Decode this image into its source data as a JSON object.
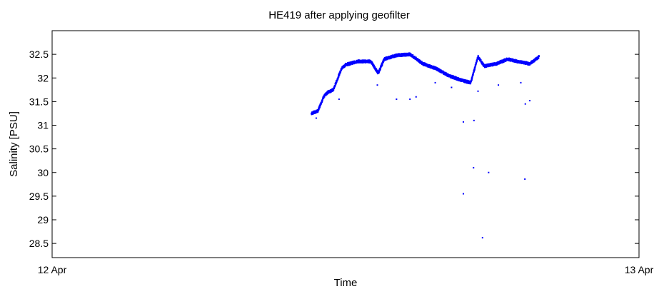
{
  "chart_data": {
    "type": "scatter",
    "title": "HE419 after applying geofilter",
    "xlabel": "Time",
    "ylabel": "Salinity [PSU]",
    "x_ticks": [
      {
        "x": "2000-04-12T00:00",
        "label": "12 Apr"
      },
      {
        "x": "2000-04-13T00:00",
        "label": "13 Apr"
      }
    ],
    "xlim": [
      "2000-04-12T00:00",
      "2000-04-13T00:00"
    ],
    "ylim": [
      28.2,
      33.0
    ],
    "y_ticks": [
      28.5,
      29,
      29.5,
      30,
      30.5,
      31,
      31.5,
      32,
      32.5
    ],
    "grid": false,
    "marker_color": "#0000ff",
    "main_track": [
      {
        "x": "2000-04-12T10:36",
        "y": 31.25
      },
      {
        "x": "2000-04-12T10:52",
        "y": 31.3
      },
      {
        "x": "2000-04-12T11:06",
        "y": 31.6
      },
      {
        "x": "2000-04-12T11:17",
        "y": 31.7
      },
      {
        "x": "2000-04-12T11:30",
        "y": 31.75
      },
      {
        "x": "2000-04-12T11:50",
        "y": 32.2
      },
      {
        "x": "2000-04-12T12:00",
        "y": 32.28
      },
      {
        "x": "2000-04-12T12:30",
        "y": 32.35
      },
      {
        "x": "2000-04-12T13:02",
        "y": 32.35
      },
      {
        "x": "2000-04-12T13:20",
        "y": 32.1
      },
      {
        "x": "2000-04-12T13:35",
        "y": 32.4
      },
      {
        "x": "2000-04-12T14:06",
        "y": 32.48
      },
      {
        "x": "2000-04-12T14:38",
        "y": 32.5
      },
      {
        "x": "2000-04-12T15:10",
        "y": 32.3
      },
      {
        "x": "2000-04-12T15:42",
        "y": 32.2
      },
      {
        "x": "2000-04-12T16:13",
        "y": 32.05
      },
      {
        "x": "2000-04-12T16:45",
        "y": 31.95
      },
      {
        "x": "2000-04-12T17:07",
        "y": 31.9
      },
      {
        "x": "2000-04-12T17:25",
        "y": 32.45
      },
      {
        "x": "2000-04-12T17:40",
        "y": 32.25
      },
      {
        "x": "2000-04-12T18:10",
        "y": 32.3
      },
      {
        "x": "2000-04-12T18:38",
        "y": 32.4
      },
      {
        "x": "2000-04-12T19:01",
        "y": 32.35
      },
      {
        "x": "2000-04-12T19:32",
        "y": 32.3
      },
      {
        "x": "2000-04-12T19:55",
        "y": 32.45
      }
    ],
    "outliers": [
      {
        "x": "2000-04-12T10:48",
        "y": 31.15
      },
      {
        "x": "2000-04-12T11:44",
        "y": 31.55
      },
      {
        "x": "2000-04-12T13:18",
        "y": 31.85
      },
      {
        "x": "2000-04-12T14:05",
        "y": 31.55
      },
      {
        "x": "2000-04-12T14:38",
        "y": 31.55
      },
      {
        "x": "2000-04-12T14:53",
        "y": 31.6
      },
      {
        "x": "2000-04-12T16:49",
        "y": 29.55
      },
      {
        "x": "2000-04-12T16:49",
        "y": 31.07
      },
      {
        "x": "2000-04-12T17:14",
        "y": 30.1
      },
      {
        "x": "2000-04-12T17:15",
        "y": 31.1
      },
      {
        "x": "2000-04-12T17:36",
        "y": 28.62
      },
      {
        "x": "2000-04-12T17:51",
        "y": 30.0
      },
      {
        "x": "2000-04-12T19:20",
        "y": 29.86
      },
      {
        "x": "2000-04-12T19:21",
        "y": 31.45
      },
      {
        "x": "2000-04-12T19:32",
        "y": 31.52
      },
      {
        "x": "2000-04-12T17:25",
        "y": 31.72
      },
      {
        "x": "2000-04-12T18:15",
        "y": 31.85
      },
      {
        "x": "2000-04-12T19:10",
        "y": 31.9
      },
      {
        "x": "2000-04-12T15:40",
        "y": 31.9
      },
      {
        "x": "2000-04-12T16:20",
        "y": 31.8
      }
    ]
  }
}
